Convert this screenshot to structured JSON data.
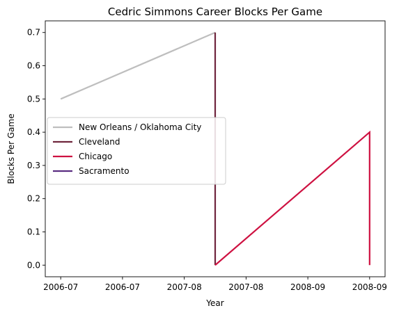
{
  "chart_data": {
    "type": "line",
    "title": "Cedric Simmons Career Blocks Per Game",
    "xlabel": "Year",
    "ylabel": "Blocks Per Game",
    "x_tick_labels": [
      "2006-07",
      "2006-07",
      "2007-08",
      "2007-08",
      "2008-09",
      "2008-09"
    ],
    "y_ticks": [
      0.0,
      0.1,
      0.2,
      0.3,
      0.4,
      0.5,
      0.6,
      0.7
    ],
    "y_tick_labels": [
      "0.0",
      "0.1",
      "0.2",
      "0.3",
      "0.4",
      "0.5",
      "0.6",
      "0.7"
    ],
    "ylim": [
      -0.035,
      0.735
    ],
    "xlim": [
      -0.1,
      2.1
    ],
    "x_positions": [
      "2006-07",
      "2007-08",
      "2008-09"
    ],
    "grid": false,
    "legend_position": "center-left",
    "series": [
      {
        "name": "New Orleans / Oklahoma City",
        "color": "#bebebe",
        "points": [
          {
            "x": 0,
            "y": 0.5
          },
          {
            "x": 1,
            "y": 0.7
          }
        ]
      },
      {
        "name": "Cleveland",
        "color": "#6f263d",
        "points": [
          {
            "x": 1,
            "y": 0.7
          },
          {
            "x": 1,
            "y": 0.0
          }
        ]
      },
      {
        "name": "Chicago",
        "color": "#ce1141",
        "points": [
          {
            "x": 1,
            "y": 0.0
          },
          {
            "x": 2,
            "y": 0.4
          },
          {
            "x": 2,
            "y": 0.0
          }
        ]
      },
      {
        "name": "Sacramento",
        "color": "#5a2d81",
        "points": []
      }
    ]
  }
}
